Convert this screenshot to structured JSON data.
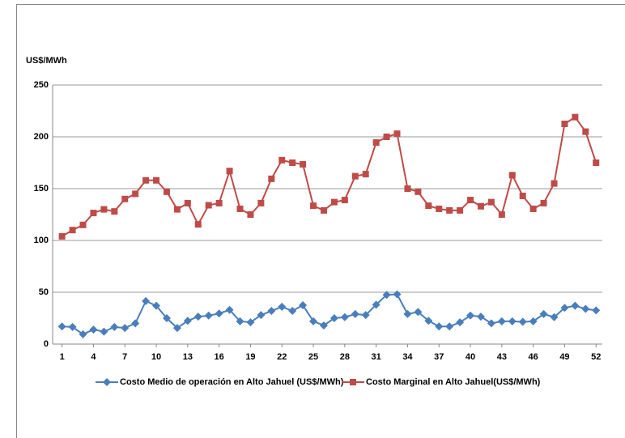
{
  "chart_data": {
    "type": "line",
    "y_label": "US$/MWh",
    "x": [
      1,
      2,
      3,
      4,
      5,
      6,
      7,
      8,
      9,
      10,
      11,
      12,
      13,
      14,
      15,
      16,
      17,
      18,
      19,
      20,
      21,
      22,
      23,
      24,
      25,
      26,
      27,
      28,
      29,
      30,
      31,
      32,
      33,
      34,
      35,
      36,
      37,
      38,
      39,
      40,
      41,
      42,
      43,
      44,
      45,
      46,
      47,
      48,
      49,
      50,
      51,
      52
    ],
    "xlim": [
      0.1,
      52.6
    ],
    "xticks": [
      1,
      4,
      7,
      10,
      13,
      16,
      19,
      22,
      25,
      28,
      31,
      34,
      37,
      40,
      43,
      46,
      49,
      52
    ],
    "ylim": [
      0,
      250
    ],
    "yticks": [
      0,
      50,
      100,
      150,
      200,
      250
    ],
    "grid": true,
    "legend": "bottom",
    "series": [
      {
        "name": "Costo Medio de operación en Alto Jahuel (US$/MWh)",
        "color": "#4a7ebb",
        "marker": "diamond",
        "values": [
          17,
          16.5,
          9.5,
          14,
          12,
          16.5,
          15.5,
          20,
          41.5,
          37,
          25,
          15.5,
          22.5,
          26.5,
          27.5,
          29.5,
          33,
          22,
          21,
          28,
          32,
          36,
          32,
          37.5,
          22,
          18,
          25,
          26,
          29,
          28,
          38,
          47.5,
          48,
          29,
          31,
          22.5,
          17,
          17,
          21,
          27.5,
          26.5,
          20,
          22,
          22,
          21.5,
          22,
          29,
          26,
          35,
          37,
          34,
          32.5
        ]
      },
      {
        "name": "Costo Marginal en Alto Jahuel(US$/MWh)",
        "color": "#be4b48",
        "marker": "square",
        "values": [
          104,
          110,
          115,
          126.5,
          130,
          128,
          140,
          145,
          158,
          158,
          147,
          130,
          136,
          115.5,
          134,
          136,
          167,
          130.5,
          125,
          136,
          159.5,
          177.5,
          175,
          173.5,
          133.5,
          129,
          137,
          139,
          162,
          164,
          194.5,
          200,
          203,
          150,
          147,
          133.5,
          130.5,
          129,
          129,
          139,
          133,
          137,
          125,
          163,
          143,
          130.5,
          136,
          155,
          212.5,
          219,
          205,
          175
        ]
      }
    ]
  }
}
